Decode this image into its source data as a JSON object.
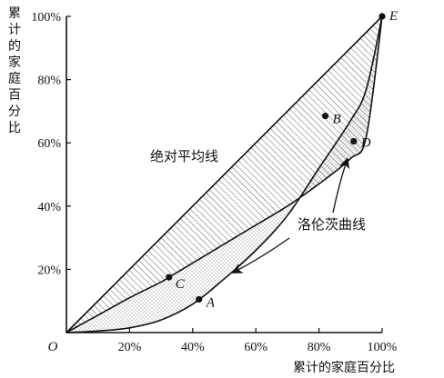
{
  "chart_data": {
    "type": "line",
    "title": "",
    "xlabel": "累计的家庭百分比",
    "ylabel": "累计的家庭百分比",
    "xlim": [
      0,
      100
    ],
    "ylim": [
      0,
      100
    ],
    "x_ticks": [
      "20%",
      "40%",
      "60%",
      "80%",
      "100%"
    ],
    "y_ticks": [
      "20%",
      "40%",
      "60%",
      "80%",
      "100%"
    ],
    "origin_label": "O",
    "grid": false,
    "series": [
      {
        "name": "绝对平均线",
        "x": [
          0,
          100
        ],
        "y": [
          0,
          100
        ]
      },
      {
        "name": "洛伦茨曲线",
        "x": [
          0,
          10,
          20,
          30,
          40,
          50,
          60,
          70,
          80,
          90,
          95,
          100
        ],
        "y": [
          0,
          0.5,
          1.5,
          4,
          9,
          17,
          26,
          37,
          52,
          67,
          77,
          100
        ]
      },
      {
        "x": [
          0,
          10,
          20,
          30,
          32.5,
          40,
          50,
          60,
          70,
          80,
          90,
          95,
          100
        ],
        "y": [
          0,
          5.5,
          11,
          16,
          17.5,
          22,
          28,
          34,
          40,
          47,
          55,
          62,
          100
        ]
      }
    ],
    "points": [
      {
        "label": "A",
        "x": 42,
        "y": 10.5
      },
      {
        "label": "B",
        "x": 82,
        "y": 68.5
      },
      {
        "label": "C",
        "x": 32.5,
        "y": 17.5
      },
      {
        "label": "D",
        "x": 91,
        "y": 60.5
      },
      {
        "label": "E",
        "x": 100,
        "y": 100
      }
    ],
    "annotations": [
      {
        "text": "绝对平均线"
      },
      {
        "text": "洛伦茨曲线"
      }
    ]
  }
}
